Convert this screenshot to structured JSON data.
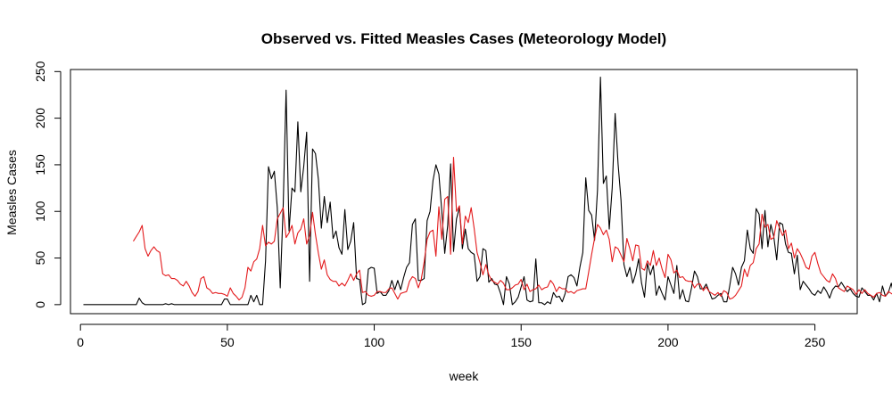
{
  "chart_data": {
    "type": "line",
    "title": "Observed vs. Fitted Measles Cases (Meteorology Model)",
    "xlabel": "week",
    "ylabel": "Measles Cases",
    "xlim": [
      -3.4,
      264.4
    ],
    "ylim": [
      -9.7,
      252.2
    ],
    "x_ticks": [
      0,
      50,
      100,
      150,
      200,
      250
    ],
    "y_ticks": [
      0,
      50,
      100,
      150,
      200,
      250
    ],
    "grid": false,
    "legend": "none",
    "series": [
      {
        "color": "#000000",
        "x_start": 1,
        "values": [
          0,
          0,
          0,
          0,
          0,
          0,
          0,
          0,
          0,
          0,
          0,
          0,
          0,
          0,
          0,
          0,
          0,
          0,
          0,
          7,
          2,
          0,
          0,
          0,
          0,
          0,
          0,
          0,
          1,
          0,
          1,
          0,
          0,
          0,
          0,
          0,
          0,
          0,
          0,
          0,
          0,
          0,
          0,
          0,
          0,
          0,
          0,
          0,
          6,
          6,
          0,
          0,
          0,
          0,
          0,
          0,
          0,
          10,
          3,
          10,
          0,
          0,
          47,
          148,
          135,
          143,
          104,
          18,
          105,
          230,
          79,
          125,
          121,
          196,
          121,
          148,
          185,
          25,
          167,
          162,
          134,
          82,
          116,
          88,
          110,
          71,
          79,
          61,
          54,
          102,
          59,
          68,
          88,
          28,
          27,
          0,
          2,
          38,
          40,
          39,
          12,
          14,
          10,
          10,
          15,
          26,
          16,
          26,
          16,
          29,
          40,
          45,
          86,
          92,
          26,
          26,
          28,
          90,
          100,
          133,
          150,
          140,
          100,
          55,
          85,
          151,
          57,
          92,
          104,
          60,
          81,
          60,
          56,
          54,
          25,
          30,
          60,
          58,
          24,
          28,
          22,
          21,
          12,
          0,
          30,
          22,
          0,
          3,
          8,
          19,
          30,
          5,
          3,
          4,
          49,
          2,
          2,
          0,
          3,
          1,
          13,
          8,
          9,
          3,
          12,
          30,
          32,
          29,
          20,
          40,
          56,
          136,
          101,
          96,
          69,
          123,
          244,
          130,
          138,
          81,
          125,
          205,
          151,
          112,
          43,
          30,
          40,
          23,
          33,
          49,
          23,
          8,
          44,
          32,
          42,
          10,
          20,
          12,
          5,
          30,
          21,
          12,
          42,
          6,
          16,
          4,
          3,
          18,
          36,
          30,
          17,
          17,
          22,
          14,
          6,
          7,
          10,
          12,
          3,
          3,
          20,
          40,
          33,
          21,
          40,
          47,
          80,
          60,
          55,
          103,
          97,
          60,
          101,
          62,
          86,
          73,
          48,
          88,
          86,
          65,
          56,
          55,
          33,
          53,
          16,
          25,
          21,
          17,
          12,
          10,
          15,
          12,
          19,
          14,
          7,
          16,
          20,
          19,
          24,
          19,
          14,
          17,
          12,
          9,
          8,
          18,
          14,
          10,
          10,
          5,
          12,
          3,
          20,
          9,
          13,
          23,
          8
        ]
      },
      {
        "color": "#e31a1c",
        "x_start": 18,
        "values": [
          68,
          73,
          78,
          85,
          60,
          52,
          58,
          62,
          58,
          56,
          33,
          31,
          32,
          28,
          28,
          26,
          22,
          20,
          25,
          20,
          13,
          9,
          14,
          28,
          30,
          18,
          16,
          12,
          13,
          12,
          12,
          11,
          9,
          18,
          12,
          9,
          5,
          8,
          18,
          40,
          36,
          46,
          49,
          60,
          85,
          63,
          67,
          65,
          68,
          92,
          98,
          104,
          72,
          77,
          85,
          65,
          77,
          81,
          92,
          65,
          74,
          99,
          75,
          55,
          38,
          48,
          32,
          27,
          25,
          25,
          20,
          23,
          20,
          26,
          33,
          26,
          33,
          37,
          13,
          14,
          10,
          9,
          10,
          14,
          14,
          13,
          13,
          17,
          18,
          12,
          6,
          12,
          13,
          14,
          25,
          30,
          28,
          18,
          27,
          46,
          70,
          78,
          80,
          52,
          105,
          70,
          113,
          116,
          54,
          158,
          100,
          106,
          65,
          95,
          88,
          104,
          82,
          56,
          45,
          32,
          43,
          32,
          26,
          24,
          22,
          26,
          23,
          16,
          16,
          18,
          21,
          22,
          27,
          16,
          22,
          14,
          16,
          17,
          21,
          16,
          18,
          19,
          26,
          22,
          14,
          19,
          17,
          17,
          13,
          14,
          12,
          15,
          16,
          17,
          17,
          35,
          54,
          71,
          86,
          82,
          75,
          80,
          70,
          46,
          62,
          60,
          53,
          46,
          71,
          60,
          47,
          64,
          63,
          39,
          37,
          47,
          42,
          58,
          42,
          50,
          38,
          29,
          54,
          48,
          34,
          37,
          29,
          30,
          26,
          25,
          25,
          18,
          22,
          22,
          15,
          19,
          14,
          12,
          10,
          13,
          9,
          15,
          13,
          6,
          7,
          10,
          15,
          20,
          38,
          30,
          42,
          45,
          60,
          65,
          97,
          83,
          86,
          70,
          72,
          90,
          82,
          74,
          80,
          60,
          66,
          50,
          60,
          55,
          48,
          40,
          38,
          52,
          56,
          44,
          34,
          30,
          26,
          24,
          33,
          28,
          18,
          16,
          14,
          20,
          18,
          16,
          11,
          16,
          12,
          16,
          12,
          10,
          8,
          12,
          13,
          10,
          9,
          14,
          12,
          10,
          10,
          8,
          18,
          16,
          8
        ]
      }
    ]
  }
}
